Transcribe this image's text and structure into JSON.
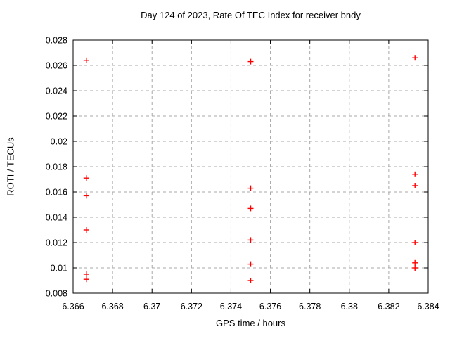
{
  "figure": {
    "background_color": "#ffffff",
    "border_color": "#000000",
    "text_color": "#000000"
  },
  "chart_data": {
    "type": "scatter",
    "title": "Day 124 of 2023, Rate Of TEC Index for receiver bndy",
    "xlabel": "GPS time / hours",
    "ylabel": "ROTI / TECUs",
    "xlim": [
      6.366,
      6.384
    ],
    "ylim": [
      0.008,
      0.028
    ],
    "xticks": [
      {
        "v": 6.366,
        "label": "6.366"
      },
      {
        "v": 6.368,
        "label": "6.368"
      },
      {
        "v": 6.37,
        "label": "6.37"
      },
      {
        "v": 6.372,
        "label": "6.372"
      },
      {
        "v": 6.374,
        "label": "6.374"
      },
      {
        "v": 6.376,
        "label": "6.376"
      },
      {
        "v": 6.378,
        "label": "6.378"
      },
      {
        "v": 6.38,
        "label": "6.38"
      },
      {
        "v": 6.382,
        "label": "6.382"
      },
      {
        "v": 6.384,
        "label": "6.384"
      }
    ],
    "yticks": [
      {
        "v": 0.008,
        "label": "0.008"
      },
      {
        "v": 0.01,
        "label": "0.01"
      },
      {
        "v": 0.012,
        "label": "0.012"
      },
      {
        "v": 0.014,
        "label": "0.014"
      },
      {
        "v": 0.016,
        "label": "0.016"
      },
      {
        "v": 0.018,
        "label": "0.018"
      },
      {
        "v": 0.02,
        "label": "0.02"
      },
      {
        "v": 0.022,
        "label": "0.022"
      },
      {
        "v": 0.024,
        "label": "0.024"
      },
      {
        "v": 0.026,
        "label": "0.026"
      },
      {
        "v": 0.028,
        "label": "0.028"
      }
    ],
    "grid": true,
    "grid_color": "#a8a8a8",
    "legend_position": "none",
    "marker": {
      "shape": "plus",
      "color": "#ff0000",
      "size": 4,
      "stroke_width": 1.4
    },
    "series": [
      {
        "name": "ROTI",
        "points": [
          [
            6.36667,
            0.0264
          ],
          [
            6.36667,
            0.0171
          ],
          [
            6.36667,
            0.0157
          ],
          [
            6.36667,
            0.013
          ],
          [
            6.36667,
            0.0095
          ],
          [
            6.36667,
            0.0091
          ],
          [
            6.375,
            0.0263
          ],
          [
            6.375,
            0.0163
          ],
          [
            6.375,
            0.0147
          ],
          [
            6.375,
            0.0122
          ],
          [
            6.375,
            0.0103
          ],
          [
            6.375,
            0.009
          ],
          [
            6.38333,
            0.0266
          ],
          [
            6.38333,
            0.0174
          ],
          [
            6.38333,
            0.0165
          ],
          [
            6.38333,
            0.012
          ],
          [
            6.38333,
            0.0104
          ],
          [
            6.38333,
            0.01
          ]
        ]
      }
    ]
  }
}
